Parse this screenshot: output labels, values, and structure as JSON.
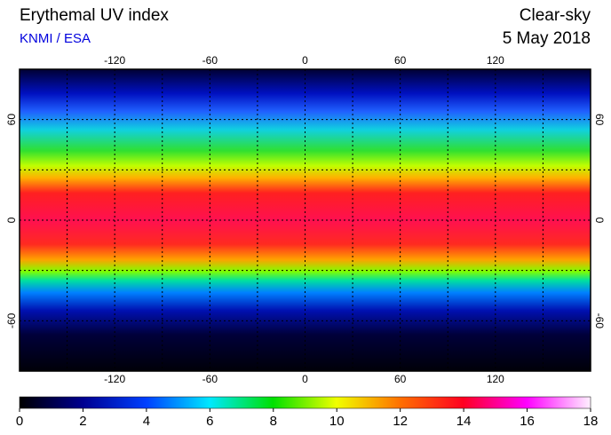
{
  "header": {
    "title": "Erythemal UV index",
    "source": "KNMI / ESA",
    "condition": "Clear-sky",
    "date": "5 May 2018"
  },
  "map": {
    "lonlim": [
      -180,
      180
    ],
    "latlim": [
      90,
      -90
    ],
    "lon_ticks": [
      -120,
      -60,
      0,
      60,
      120
    ],
    "lat_ticks": [
      60,
      0,
      -60
    ]
  },
  "colorbar": {
    "lim": [
      0,
      18
    ],
    "ticks": [
      0,
      2,
      4,
      6,
      8,
      10,
      12,
      14,
      16,
      18
    ]
  }
}
